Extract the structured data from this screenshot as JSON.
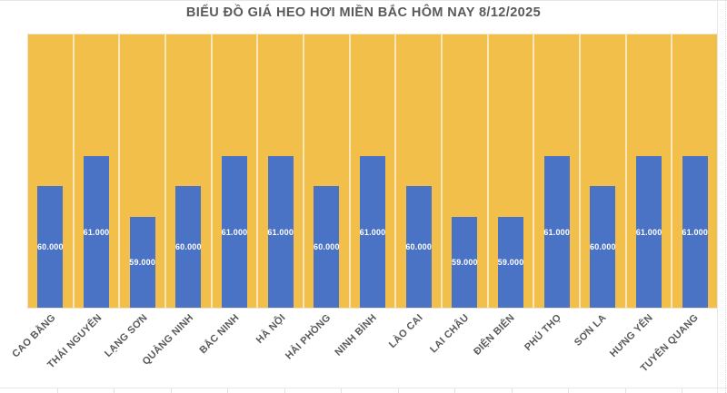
{
  "page": {
    "background": "#FFFFFF"
  },
  "chart_data": {
    "type": "bar",
    "title": "BIỂU ĐỒ GIÁ HEO HƠI MIỀN BẮC HÔM NAY 8/12/2025",
    "categories": [
      "CAO BẰNG",
      "THÁI NGUYÊN",
      "LẠNG SƠN",
      "QUẢNG NINH",
      "BẮC NINH",
      "HÀ NỘI",
      "HẢI PHÒNG",
      "NINH BÌNH",
      "LÀO CAI",
      "LAI CHÂU",
      "ĐIỆN BIÊN",
      "PHÚ THỌ",
      "SƠN LA",
      "HƯNG YÊN",
      "TUYÊN QUANG"
    ],
    "values": [
      60000,
      61000,
      59000,
      60000,
      61000,
      61000,
      60000,
      61000,
      60000,
      59000,
      59000,
      61000,
      60000,
      61000,
      61000
    ],
    "value_labels": [
      "60.000",
      "61.000",
      "59.000",
      "60.000",
      "61.000",
      "61.000",
      "60.000",
      "61.000",
      "60.000",
      "59.000",
      "59.000",
      "61.000",
      "60.000",
      "61.000",
      "61.000"
    ],
    "xlabel": "",
    "ylabel": "",
    "ylim": [
      56000,
      65000
    ],
    "legend": "none",
    "grid": "vertical-category-separators",
    "data_label_position": "inside-center",
    "x_label_rotation_deg": -45,
    "colors": {
      "plot_background": "#F2C04A",
      "bar_fill": "#4A72C5",
      "bar_label_text": "#FFFFFF",
      "axis_label_text": "#595959",
      "title_text": "#595959",
      "separator_line": "rgba(255,255,255,0.6)",
      "worksheet_gridline": "#E3E3E3"
    }
  }
}
